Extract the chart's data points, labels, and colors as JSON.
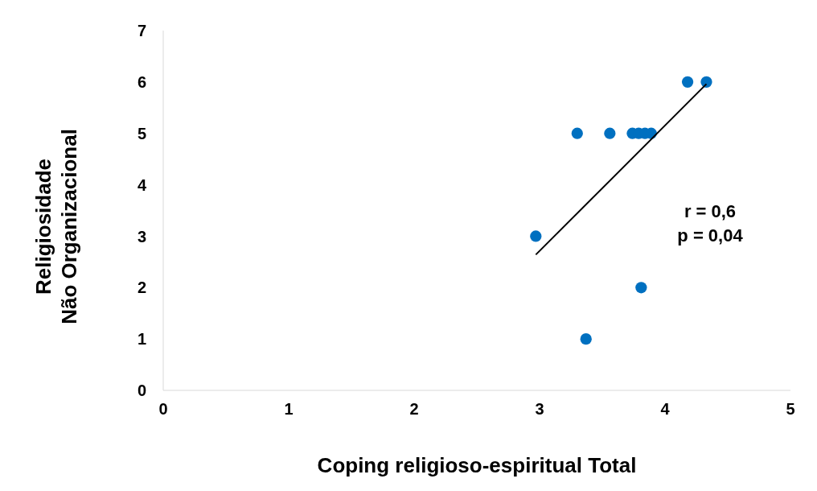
{
  "chart_data": {
    "type": "scatter",
    "xlabel": "Coping religioso-espiritual Total",
    "ylabel": "Religiosidade\nNão Organizacional",
    "annotations": [
      "r = 0,6",
      "p = 0,04"
    ],
    "series": [
      {
        "color": "#0070c0",
        "marker": "circle",
        "x": [
          2.97,
          3.3,
          3.56,
          3.74,
          3.79,
          3.84,
          3.89,
          4.18,
          4.33,
          3.81,
          3.37
        ],
        "values": [
          3,
          5,
          5,
          5,
          5,
          5,
          5,
          6,
          6,
          2,
          1
        ]
      },
      {
        "type": "line",
        "color": "#000000",
        "x": [
          2.97,
          4.33
        ],
        "values": [
          2.64,
          5.96
        ]
      }
    ],
    "xlim": [
      0,
      5
    ],
    "xticks": [
      0,
      1,
      2,
      3,
      4,
      5
    ],
    "ylim": [
      0,
      7
    ],
    "yticks": [
      0,
      1,
      2,
      3,
      4,
      5,
      6,
      7
    ],
    "grid": false,
    "legend": false
  }
}
